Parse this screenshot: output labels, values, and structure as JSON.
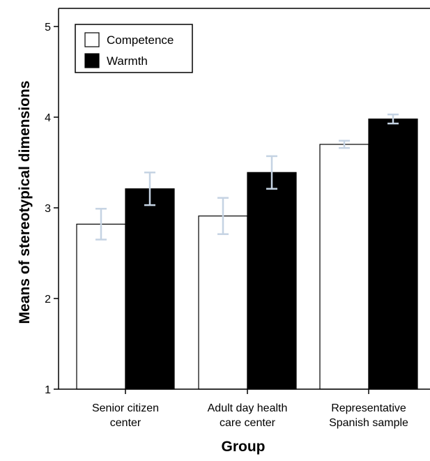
{
  "chart_data": {
    "type": "bar",
    "title": "",
    "xlabel": "Group",
    "ylabel": "Means of stereotypical dimensions",
    "ylim": [
      1,
      5.2
    ],
    "yticks": [
      1,
      2,
      3,
      4,
      5
    ],
    "categories": [
      [
        "Senior citizen",
        "center"
      ],
      [
        "Adult day health",
        "care center"
      ],
      [
        "Representative",
        "Spanish sample"
      ]
    ],
    "series": [
      {
        "name": "Competence",
        "fill": "#ffffff",
        "values": [
          2.82,
          2.91,
          3.7
        ],
        "error": [
          0.17,
          0.2,
          0.04
        ]
      },
      {
        "name": "Warmth",
        "fill": "#000000",
        "values": [
          3.21,
          3.39,
          3.98
        ],
        "error": [
          0.18,
          0.18,
          0.05
        ]
      }
    ],
    "error_bar_color": "#c5d3e3",
    "legend": "top-left",
    "grid": false
  }
}
